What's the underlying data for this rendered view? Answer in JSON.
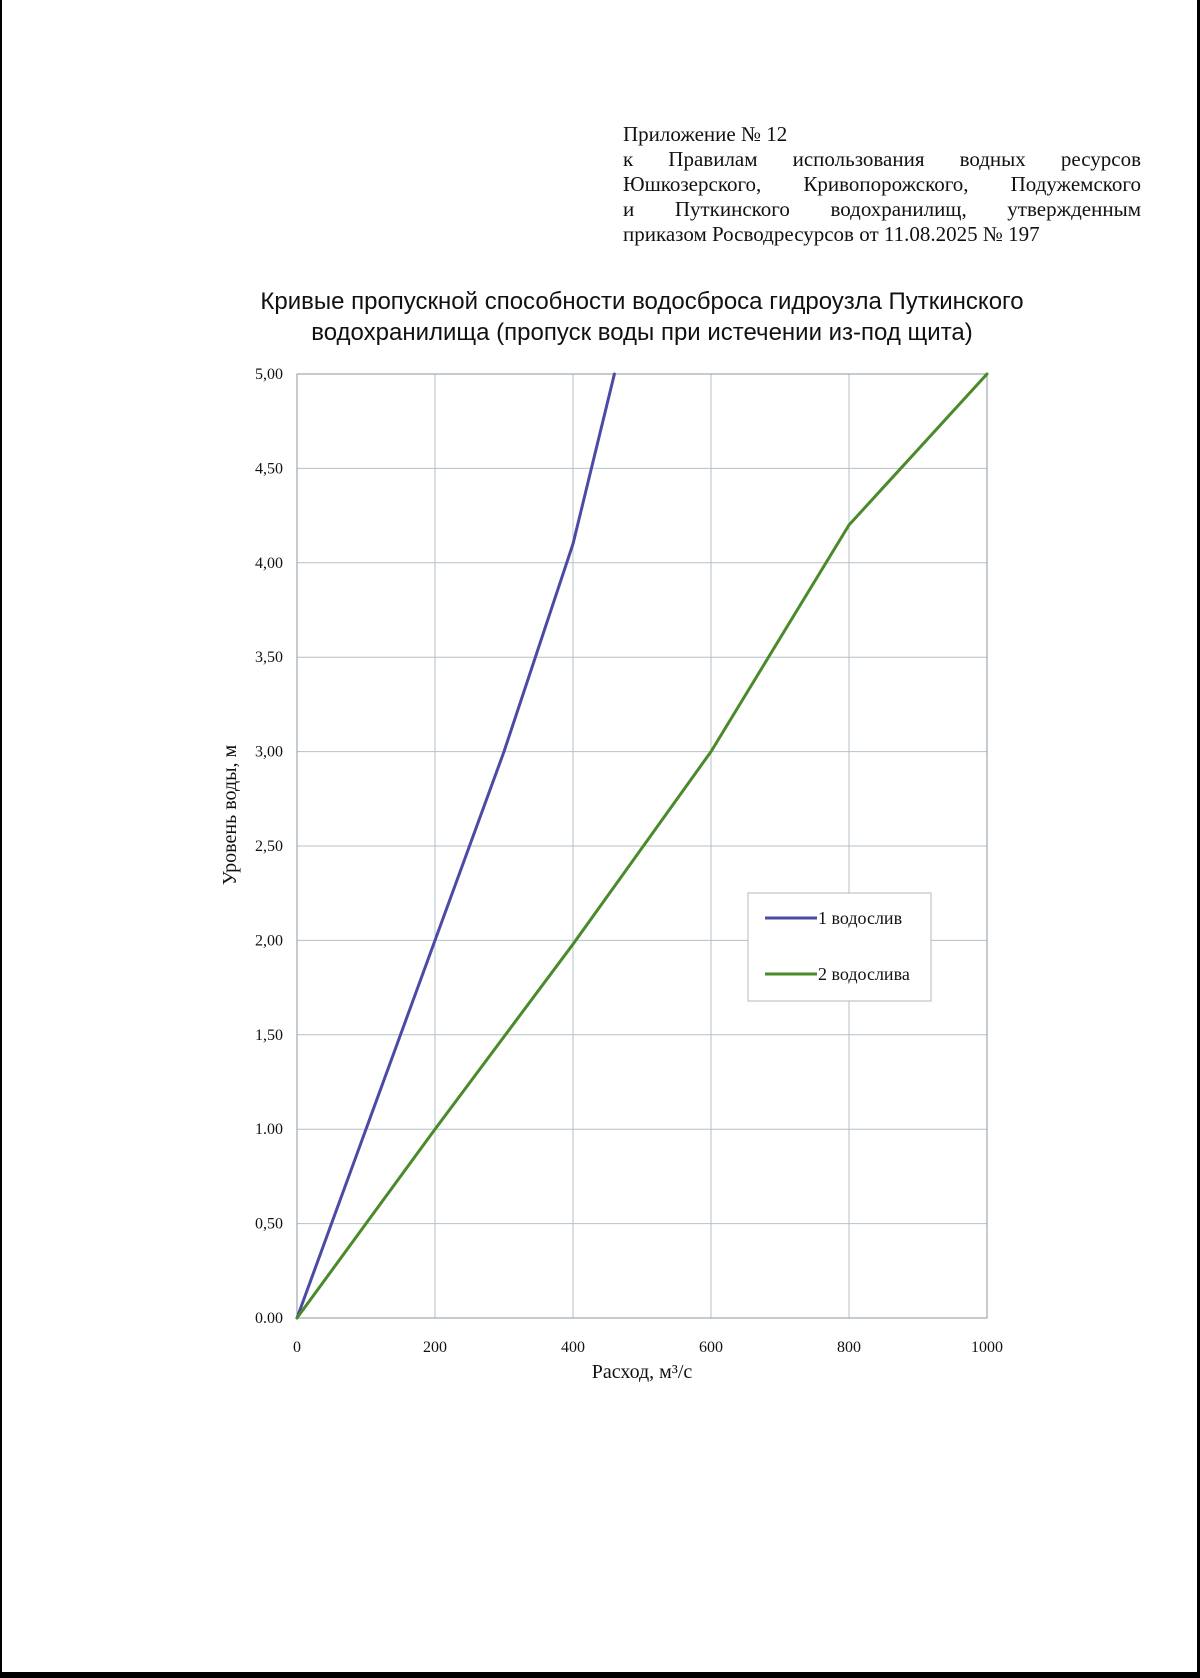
{
  "annex": {
    "line1": "Приложение № 12",
    "line2": "к Правилам использования водных ресурсов",
    "line3": "Юшкозерского, Кривопорожского, Подужемского",
    "line4": "и Путкинского водохранилищ, утвержденным",
    "line5": "приказом Росводресурсов от 11.08.2025 № 197"
  },
  "chart_data": {
    "type": "line",
    "title_line1": "Кривые пропускной способности водосброса гидроузла Путкинского",
    "title_line2": "водохранилища (пропуск воды при истечении из-под щита)",
    "xlabel": "Расход, м³/с",
    "ylabel": "Уровень воды, м",
    "xlim": [
      0,
      1000
    ],
    "ylim": [
      0,
      5
    ],
    "x_ticks": [
      "0",
      "200",
      "400",
      "600",
      "800",
      "1000"
    ],
    "y_ticks": [
      "0.00",
      "0,50",
      "1.00",
      "1,50",
      "2,00",
      "2,50",
      "3,00",
      "3,50",
      "4,00",
      "4,50",
      "5,00"
    ],
    "grid": true,
    "legend_position": "right",
    "series": [
      {
        "name": "1 водослив",
        "color": "#4b4ba6",
        "x": [
          0,
          100,
          200,
          300,
          400,
          460
        ],
        "y": [
          0,
          1.0,
          2.0,
          3.0,
          4.1,
          5.0
        ]
      },
      {
        "name": "2 водослива",
        "color": "#4a8a2a",
        "x": [
          0,
          200,
          400,
          600,
          800,
          1000
        ],
        "y": [
          0,
          1.0,
          1.98,
          3.0,
          4.2,
          5.0
        ]
      }
    ]
  }
}
